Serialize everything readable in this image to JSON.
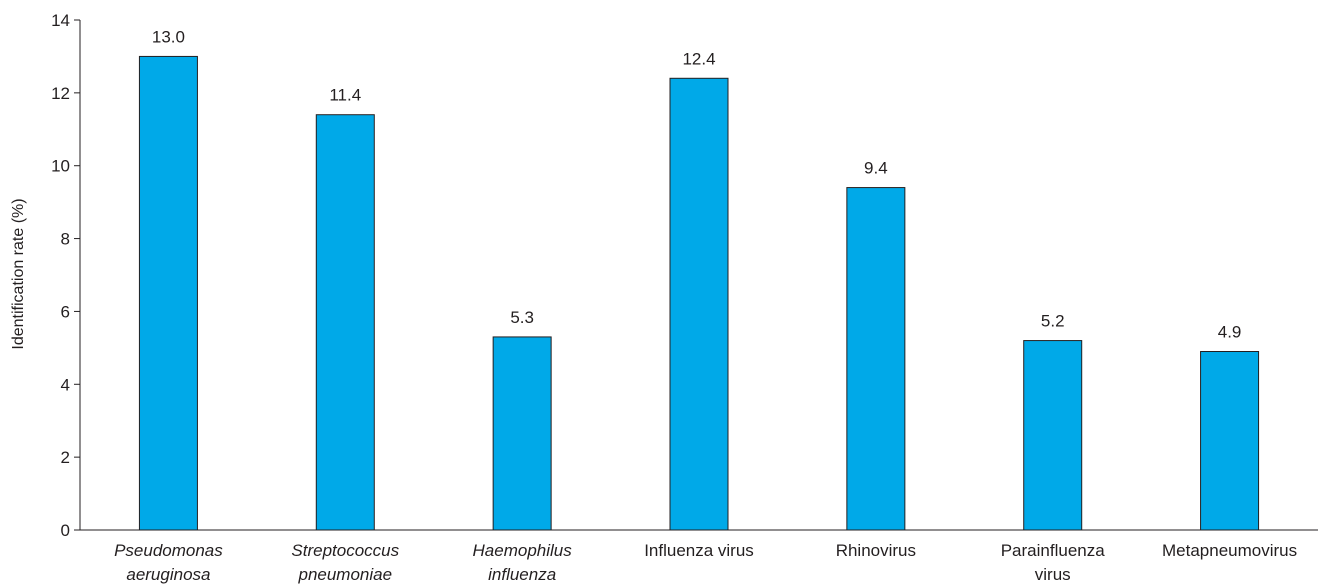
{
  "chart_data": {
    "type": "bar",
    "ylabel": "Identification rate (%)",
    "xlabel": "",
    "ylim": [
      0,
      14
    ],
    "yticks": [
      0,
      2,
      4,
      6,
      8,
      10,
      12,
      14
    ],
    "grid": false,
    "bar_color": "#00a9e8",
    "categories": [
      {
        "lines": [
          "Pseudomonas",
          "aeruginosa"
        ],
        "italic": true
      },
      {
        "lines": [
          "Streptococcus",
          "pneumoniae"
        ],
        "italic": true
      },
      {
        "lines": [
          "Haemophilus",
          "influenza"
        ],
        "italic": true
      },
      {
        "lines": [
          "Influenza virus"
        ],
        "italic": false
      },
      {
        "lines": [
          "Rhinovirus"
        ],
        "italic": false
      },
      {
        "lines": [
          "Parainfluenza",
          "virus"
        ],
        "italic": false
      },
      {
        "lines": [
          "Metapneumovirus"
        ],
        "italic": false
      }
    ],
    "values": [
      13.0,
      11.4,
      5.3,
      12.4,
      9.4,
      5.2,
      4.9
    ],
    "value_labels": [
      "13.0",
      "11.4",
      "5.3",
      "12.4",
      "9.4",
      "5.2",
      "4.9"
    ]
  }
}
